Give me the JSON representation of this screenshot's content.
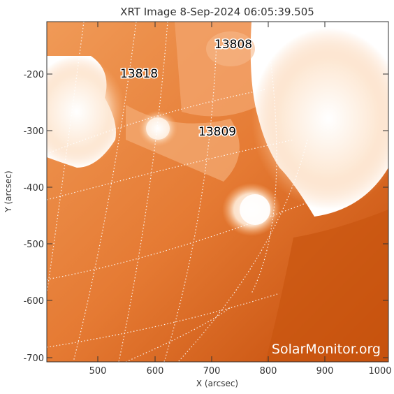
{
  "title": "XRT Image  8-Sep-2024 06:05:39.505",
  "xlabel": "X (arcsec)",
  "ylabel": "Y (arcsec)",
  "x_ticks": [
    "500",
    "600",
    "700",
    "800",
    "900",
    "1000"
  ],
  "y_ticks": [
    "-200",
    "-300",
    "-400",
    "-500",
    "-600",
    "-700"
  ],
  "regions": [
    "13808",
    "13818",
    "13809"
  ],
  "watermark": "SolarMonitor.org",
  "colors": {
    "dark_orange": "#c24a08",
    "mid_orange": "#e87a30",
    "light_orange": "#f5a463",
    "saturated": "#ffffff"
  }
}
